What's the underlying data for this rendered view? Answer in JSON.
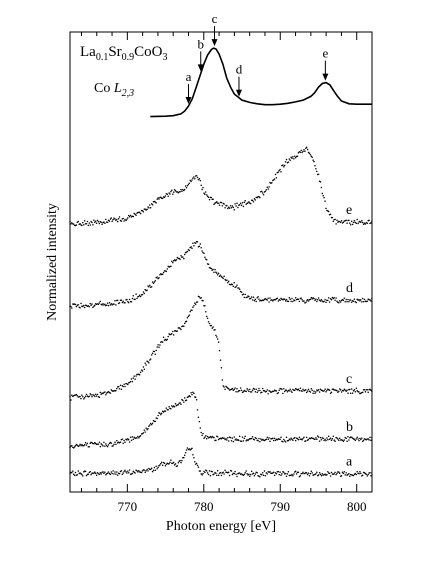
{
  "chart_data": {
    "type": "line",
    "title": "La0.1Sr0.9CoO3",
    "title_parts": {
      "base1": "La",
      "sub1": "0.1",
      "base2": "Sr",
      "sub2": "0.9",
      "base3": "CoO",
      "sub3": "3"
    },
    "edge_label": {
      "prefix": "Co ",
      "italic": "L",
      "sub": "2,3"
    },
    "xlabel": "Photon energy [eV]",
    "ylabel": "Normalized intensity",
    "xlim": [
      762.5,
      802
    ],
    "ylim": [
      0,
      10
    ],
    "x_ticks": [
      {
        "value": 770,
        "label": "770"
      },
      {
        "value": 780,
        "label": "780"
      },
      {
        "value": 790,
        "label": "790"
      },
      {
        "value": 800,
        "label": "800"
      }
    ],
    "minor_tick_step": 2,
    "grid": false,
    "legend": "none",
    "xas_series": {
      "name": "",
      "style": "solid",
      "x": [
        773,
        775,
        776,
        777,
        777.5,
        778,
        778.5,
        779,
        779.5,
        780,
        780.5,
        781,
        781.3,
        781.6,
        782,
        782.5,
        783,
        783.5,
        784,
        785,
        786,
        787,
        788,
        789,
        790,
        791,
        792,
        793,
        794,
        794.5,
        795,
        795.5,
        796,
        796.5,
        797,
        797.5,
        798,
        799,
        800,
        801,
        802
      ],
      "y": [
        8.16,
        8.17,
        8.18,
        8.22,
        8.28,
        8.39,
        8.55,
        8.8,
        9.05,
        9.3,
        9.5,
        9.62,
        9.65,
        9.63,
        9.52,
        9.3,
        9.0,
        8.8,
        8.65,
        8.52,
        8.47,
        8.44,
        8.42,
        8.42,
        8.43,
        8.45,
        8.48,
        8.52,
        8.6,
        8.68,
        8.8,
        8.88,
        8.9,
        8.85,
        8.72,
        8.6,
        8.5,
        8.44,
        8.43,
        8.43,
        8.43
      ]
    },
    "xas_markers": [
      {
        "label": "a",
        "x": 778.0,
        "y": 8.39
      },
      {
        "label": "b",
        "x": 779.6,
        "y": 9.1
      },
      {
        "label": "c",
        "x": 781.4,
        "y": 9.65
      },
      {
        "label": "d",
        "x": 784.6,
        "y": 8.55
      },
      {
        "label": "e",
        "x": 795.9,
        "y": 8.9
      }
    ],
    "rixs_series": [
      {
        "name": "a",
        "x": [
          762.5,
          770,
          772,
          773.5,
          774.5,
          775.5,
          776.5,
          777.3,
          778,
          778.5,
          779,
          779.5,
          780,
          781,
          785,
          790,
          795,
          802
        ],
        "y": [
          0.4,
          0.42,
          0.45,
          0.5,
          0.62,
          0.65,
          0.6,
          0.7,
          0.95,
          0.9,
          0.6,
          0.45,
          0.42,
          0.41,
          0.4,
          0.4,
          0.4,
          0.4
        ]
      },
      {
        "name": "b",
        "x": [
          762.5,
          768,
          770,
          771.5,
          772.5,
          773.5,
          774.5,
          775.5,
          776.5,
          777.5,
          778.5,
          779,
          779.5,
          780,
          781,
          785,
          790,
          795,
          802
        ],
        "y": [
          1.0,
          1.05,
          1.12,
          1.22,
          1.35,
          1.55,
          1.72,
          1.82,
          1.9,
          2.0,
          2.15,
          2.1,
          1.4,
          1.18,
          1.16,
          1.15,
          1.15,
          1.15,
          1.15
        ]
      },
      {
        "name": "c",
        "x": [
          762.5,
          766,
          768,
          770,
          771.5,
          773,
          774,
          775,
          776,
          777,
          778,
          779,
          779.5,
          780,
          780.5,
          781,
          781.5,
          782,
          782.5,
          784,
          790,
          795,
          802
        ],
        "y": [
          2.05,
          2.1,
          2.2,
          2.35,
          2.55,
          2.9,
          3.15,
          3.35,
          3.45,
          3.55,
          3.8,
          4.15,
          4.25,
          4.1,
          3.8,
          3.6,
          3.5,
          3.2,
          2.3,
          2.2,
          2.2,
          2.2,
          2.2
        ]
      },
      {
        "name": "d",
        "x": [
          762.5,
          766,
          768,
          770,
          772,
          773.5,
          774.5,
          775.5,
          776.5,
          777.5,
          778.5,
          779,
          779.5,
          780,
          780.5,
          781,
          782,
          783,
          784,
          784.5,
          785,
          786,
          790,
          795,
          802
        ],
        "y": [
          4.05,
          4.07,
          4.1,
          4.15,
          4.3,
          4.55,
          4.75,
          4.9,
          5.05,
          5.15,
          5.35,
          5.45,
          5.35,
          5.2,
          5.0,
          4.85,
          4.72,
          4.6,
          4.5,
          4.45,
          4.3,
          4.2,
          4.18,
          4.17,
          4.17
        ]
      },
      {
        "name": "e",
        "x": [
          762.5,
          766,
          768,
          770,
          772,
          773.5,
          775,
          776.5,
          777.5,
          778.5,
          779,
          779.5,
          780,
          781,
          782,
          783,
          784,
          785,
          786,
          787,
          788,
          789,
          790,
          791,
          792,
          793,
          793.5,
          794,
          795,
          796,
          797,
          798,
          802
        ],
        "y": [
          5.82,
          5.85,
          5.9,
          5.95,
          6.1,
          6.3,
          6.45,
          6.55,
          6.6,
          6.78,
          6.88,
          6.75,
          6.55,
          6.35,
          6.25,
          6.2,
          6.2,
          6.25,
          6.3,
          6.4,
          6.55,
          6.75,
          7.0,
          7.2,
          7.3,
          7.42,
          7.45,
          7.35,
          6.9,
          6.2,
          5.9,
          5.87,
          5.87
        ]
      }
    ]
  }
}
